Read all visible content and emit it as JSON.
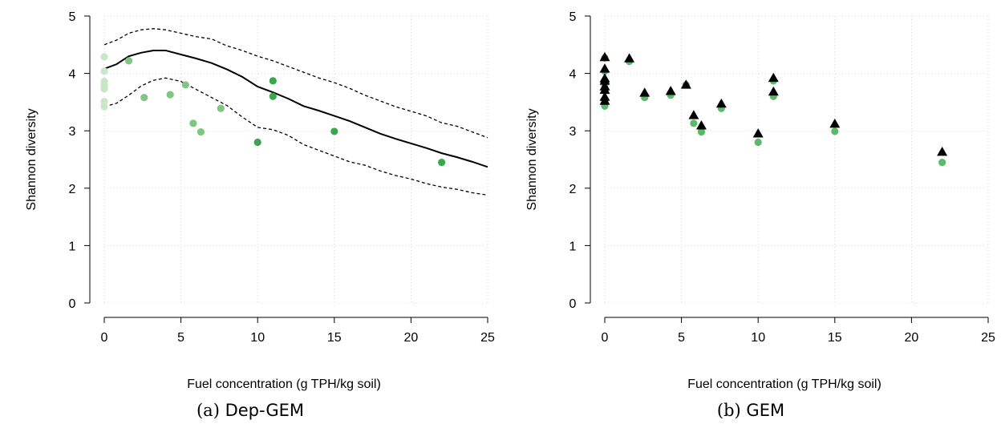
{
  "colors": {
    "point_light": "#c9e6c6",
    "point_mid": "#7fc682",
    "point_dark": "#3aa650",
    "gem_point": "#5cb86a",
    "line": "#000000",
    "grid": "#d9d9d9"
  },
  "captions": [
    {
      "label": "(a)",
      "name": "Dep-GEM"
    },
    {
      "label": "(b)",
      "name": "GEM"
    }
  ],
  "chart_data": [
    {
      "type": "scatter",
      "xlabel": "Fuel concentration (g TPH/kg soil)",
      "ylabel": "Shannon diversity",
      "xlim": [
        0,
        25
      ],
      "ylim": [
        0,
        5
      ],
      "xticks": [
        0,
        5,
        10,
        15,
        20,
        25
      ],
      "yticks": [
        0,
        1,
        2,
        3,
        4,
        5
      ],
      "grid": true,
      "points": [
        {
          "x": 0,
          "y": 4.29
        },
        {
          "x": 0,
          "y": 4.04
        },
        {
          "x": 0,
          "y": 3.86
        },
        {
          "x": 0,
          "y": 3.8
        },
        {
          "x": 0,
          "y": 3.77
        },
        {
          "x": 0,
          "y": 3.73
        },
        {
          "x": 0,
          "y": 3.51
        },
        {
          "x": 0,
          "y": 3.42
        },
        {
          "x": 1.6,
          "y": 4.22
        },
        {
          "x": 2.6,
          "y": 3.58
        },
        {
          "x": 4.3,
          "y": 3.63
        },
        {
          "x": 5.3,
          "y": 3.8
        },
        {
          "x": 5.8,
          "y": 3.13
        },
        {
          "x": 6.3,
          "y": 2.98
        },
        {
          "x": 7.6,
          "y": 3.39
        },
        {
          "x": 10.0,
          "y": 2.8
        },
        {
          "x": 11.0,
          "y": 3.87
        },
        {
          "x": 11.0,
          "y": 3.6
        },
        {
          "x": 15.0,
          "y": 2.99
        },
        {
          "x": 22.0,
          "y": 2.45
        }
      ],
      "mean_curve": {
        "x": [
          0,
          0.8,
          1.6,
          2.4,
          3.2,
          4.0,
          5.0,
          6.0,
          7.0,
          8.0,
          9.0,
          10.0,
          11.0,
          12.0,
          13.0,
          14.0,
          15.0,
          16.0,
          17.0,
          18.0,
          19.0,
          20.0,
          21.0,
          22.0,
          23.0,
          24.0,
          25.0
        ],
        "y": [
          4.08,
          4.16,
          4.3,
          4.36,
          4.4,
          4.4,
          4.33,
          4.26,
          4.18,
          4.07,
          3.94,
          3.77,
          3.67,
          3.56,
          3.43,
          3.35,
          3.26,
          3.17,
          3.06,
          2.95,
          2.86,
          2.78,
          2.7,
          2.61,
          2.54,
          2.46,
          2.37
        ]
      },
      "upper_band": {
        "x": [
          0,
          0.8,
          1.6,
          2.4,
          3.2,
          4.0,
          5.0,
          6.0,
          7.0,
          8.0,
          9.0,
          10.0,
          11.0,
          12.0,
          13.0,
          14.0,
          15.0,
          16.0,
          17.0,
          18.0,
          19.0,
          20.0,
          21.0,
          22.0,
          23.0,
          24.0,
          25.0
        ],
        "y": [
          4.5,
          4.58,
          4.7,
          4.76,
          4.78,
          4.76,
          4.7,
          4.64,
          4.6,
          4.48,
          4.4,
          4.3,
          4.22,
          4.12,
          4.02,
          3.92,
          3.84,
          3.74,
          3.62,
          3.52,
          3.42,
          3.34,
          3.26,
          3.14,
          3.08,
          2.98,
          2.88
        ]
      },
      "lower_band": {
        "x": [
          0,
          0.8,
          1.6,
          2.4,
          3.2,
          4.0,
          5.0,
          6.0,
          7.0,
          8.0,
          9.0,
          10.0,
          11.0,
          12.0,
          13.0,
          14.0,
          15.0,
          16.0,
          17.0,
          18.0,
          19.0,
          20.0,
          21.0,
          22.0,
          23.0,
          24.0,
          25.0
        ],
        "y": [
          3.42,
          3.48,
          3.62,
          3.78,
          3.88,
          3.92,
          3.86,
          3.72,
          3.58,
          3.44,
          3.24,
          3.06,
          3.02,
          2.92,
          2.76,
          2.66,
          2.56,
          2.46,
          2.4,
          2.3,
          2.22,
          2.16,
          2.08,
          2.02,
          1.98,
          1.92,
          1.88
        ]
      }
    },
    {
      "type": "scatter",
      "xlabel": "Fuel concentration (g TPH/kg soil)",
      "ylabel": "Shannon diversity",
      "xlim": [
        0,
        25
      ],
      "ylim": [
        0,
        5
      ],
      "xticks": [
        0,
        5,
        10,
        15,
        20,
        25
      ],
      "yticks": [
        0,
        1,
        2,
        3,
        4,
        5
      ],
      "grid": true,
      "points": [
        {
          "x": 0,
          "y": 4.27
        },
        {
          "x": 0,
          "y": 4.04
        },
        {
          "x": 0,
          "y": 3.86
        },
        {
          "x": 0,
          "y": 3.8
        },
        {
          "x": 0,
          "y": 3.74
        },
        {
          "x": 0,
          "y": 3.7
        },
        {
          "x": 0,
          "y": 3.51
        },
        {
          "x": 0,
          "y": 3.43
        },
        {
          "x": 1.6,
          "y": 4.21
        },
        {
          "x": 2.6,
          "y": 3.58
        },
        {
          "x": 4.3,
          "y": 3.62
        },
        {
          "x": 5.3,
          "y": 3.8
        },
        {
          "x": 5.8,
          "y": 3.13
        },
        {
          "x": 6.3,
          "y": 2.98
        },
        {
          "x": 7.6,
          "y": 3.39
        },
        {
          "x": 10.0,
          "y": 2.8
        },
        {
          "x": 11.0,
          "y": 3.87
        },
        {
          "x": 11.0,
          "y": 3.6
        },
        {
          "x": 15.0,
          "y": 2.99
        },
        {
          "x": 22.0,
          "y": 2.45
        }
      ],
      "predicted": [
        {
          "x": 0,
          "y": 4.24
        },
        {
          "x": 0,
          "y": 4.04
        },
        {
          "x": 0,
          "y": 3.87
        },
        {
          "x": 0,
          "y": 3.83
        },
        {
          "x": 0,
          "y": 3.73
        },
        {
          "x": 0,
          "y": 3.67
        },
        {
          "x": 0,
          "y": 3.55
        },
        {
          "x": 0,
          "y": 3.48
        },
        {
          "x": 1.6,
          "y": 4.22
        },
        {
          "x": 2.6,
          "y": 3.62
        },
        {
          "x": 4.3,
          "y": 3.65
        },
        {
          "x": 5.3,
          "y": 3.76
        },
        {
          "x": 5.8,
          "y": 3.23
        },
        {
          "x": 6.3,
          "y": 3.05
        },
        {
          "x": 7.6,
          "y": 3.43
        },
        {
          "x": 10.0,
          "y": 2.91
        },
        {
          "x": 11.0,
          "y": 3.88
        },
        {
          "x": 11.0,
          "y": 3.64
        },
        {
          "x": 15.0,
          "y": 3.08
        },
        {
          "x": 22.0,
          "y": 2.59
        }
      ]
    }
  ]
}
